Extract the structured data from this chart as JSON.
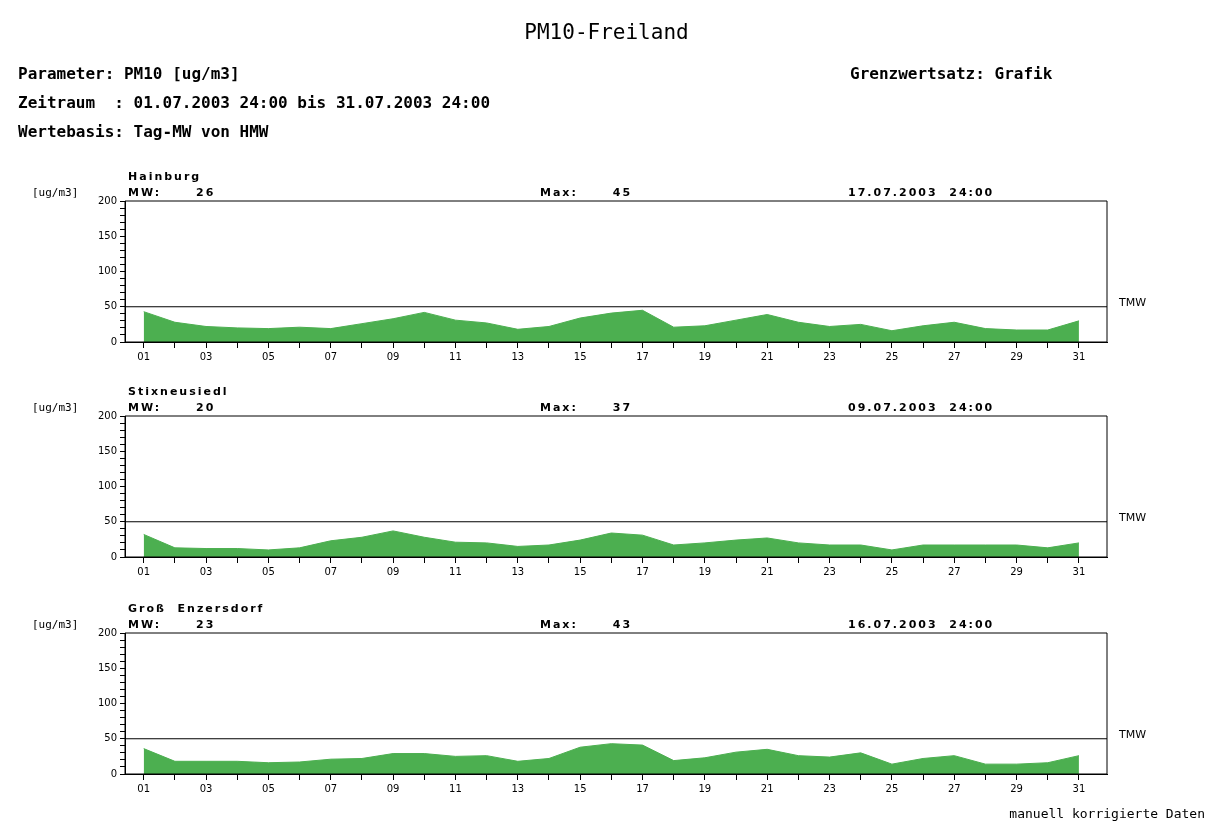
{
  "chart_data": [
    {
      "type": "other",
      "title": "PM10-Freiland",
      "annotations": [
        "Parameter: PM10 [ug/m3]",
        "Zeitraum  : 01.07.2003 24:00 bis 31.07.2003 24:00",
        "Wertebasis: Tag-MW von HMW",
        "Grenzwertsatz: Grafik"
      ]
    },
    {
      "type": "area",
      "title": "Hainburg",
      "ylabel": "[ug/m3]",
      "annotations": [
        "MW:      26",
        "Max:      45",
        "17.07.2003  24:00"
      ],
      "x": [
        1,
        2,
        3,
        4,
        5,
        6,
        7,
        8,
        9,
        10,
        11,
        12,
        13,
        14,
        15,
        16,
        17,
        18,
        19,
        20,
        21,
        22,
        23,
        24,
        25,
        26,
        27,
        28,
        29,
        30,
        31
      ],
      "series": [
        {
          "color": "#4caf50",
          "values": [
            43,
            28,
            22,
            20,
            19,
            21,
            19,
            26,
            33,
            42,
            31,
            27,
            18,
            22,
            34,
            41,
            45,
            21,
            23,
            31,
            39,
            28,
            22,
            25,
            16,
            23,
            28,
            19,
            17,
            17,
            30
          ]
        }
      ],
      "xlim": [
        0.4,
        31.9
      ],
      "xticks": [
        {
          "value": 1,
          "label": "01"
        },
        {
          "value": 2,
          "label": null
        },
        {
          "value": 3,
          "label": "03"
        },
        {
          "value": 4,
          "label": null
        },
        {
          "value": 5,
          "label": "05"
        },
        {
          "value": 6,
          "label": null
        },
        {
          "value": 7,
          "label": "07"
        },
        {
          "value": 8,
          "label": null
        },
        {
          "value": 9,
          "label": "09"
        },
        {
          "value": 10,
          "label": null
        },
        {
          "value": 11,
          "label": "11"
        },
        {
          "value": 12,
          "label": null
        },
        {
          "value": 13,
          "label": "13"
        },
        {
          "value": 14,
          "label": null
        },
        {
          "value": 15,
          "label": "15"
        },
        {
          "value": 16,
          "label": null
        },
        {
          "value": 17,
          "label": "17"
        },
        {
          "value": 18,
          "label": null
        },
        {
          "value": 19,
          "label": "19"
        },
        {
          "value": 20,
          "label": null
        },
        {
          "value": 21,
          "label": "21"
        },
        {
          "value": 22,
          "label": null
        },
        {
          "value": 23,
          "label": "23"
        },
        {
          "value": 24,
          "label": null
        },
        {
          "value": 25,
          "label": "25"
        },
        {
          "value": 26,
          "label": null
        },
        {
          "value": 27,
          "label": "27"
        },
        {
          "value": 28,
          "label": null
        },
        {
          "value": 29,
          "label": "29"
        },
        {
          "value": 30,
          "label": null
        },
        {
          "value": 31,
          "label": "31"
        }
      ],
      "ylim": [
        0,
        200
      ],
      "yticks": [
        0,
        {
          "value": 10,
          "label": null
        },
        {
          "value": 20,
          "label": null
        },
        {
          "value": 30,
          "label": null
        },
        {
          "value": 40,
          "label": null
        },
        50,
        {
          "value": 60,
          "label": null
        },
        {
          "value": 70,
          "label": null
        },
        {
          "value": 80,
          "label": null
        },
        {
          "value": 90,
          "label": null
        },
        100,
        {
          "value": 110,
          "label": null
        },
        {
          "value": 120,
          "label": null
        },
        {
          "value": 130,
          "label": null
        },
        {
          "value": 140,
          "label": null
        },
        150,
        {
          "value": 160,
          "label": null
        },
        {
          "value": 170,
          "label": null
        },
        {
          "value": 180,
          "label": null
        },
        {
          "value": 190,
          "label": null
        },
        200
      ],
      "ref_lines": [
        {
          "axis": "y",
          "value": 50,
          "label": "TMW",
          "color": "#000000"
        }
      ],
      "grid": false,
      "legend": false,
      "marker": "none"
    },
    {
      "type": "area",
      "title": "Stixneusiedl",
      "ylabel": "[ug/m3]",
      "annotations": [
        "MW:      20",
        "Max:      37",
        "09.07.2003  24:00"
      ],
      "x": [
        1,
        2,
        3,
        4,
        5,
        6,
        7,
        8,
        9,
        10,
        11,
        12,
        13,
        14,
        15,
        16,
        17,
        18,
        19,
        20,
        21,
        22,
        23,
        24,
        25,
        26,
        27,
        28,
        29,
        30,
        31
      ],
      "series": [
        {
          "color": "#4caf50",
          "values": [
            32,
            13,
            12,
            12,
            10,
            13,
            23,
            28,
            37,
            28,
            21,
            20,
            15,
            17,
            24,
            34,
            31,
            17,
            20,
            24,
            27,
            20,
            17,
            17,
            10,
            17,
            17,
            17,
            17,
            13,
            20
          ]
        }
      ],
      "xlim": [
        0.4,
        31.9
      ],
      "xticks": [
        {
          "value": 1,
          "label": "01"
        },
        {
          "value": 2,
          "label": null
        },
        {
          "value": 3,
          "label": "03"
        },
        {
          "value": 4,
          "label": null
        },
        {
          "value": 5,
          "label": "05"
        },
        {
          "value": 6,
          "label": null
        },
        {
          "value": 7,
          "label": "07"
        },
        {
          "value": 8,
          "label": null
        },
        {
          "value": 9,
          "label": "09"
        },
        {
          "value": 10,
          "label": null
        },
        {
          "value": 11,
          "label": "11"
        },
        {
          "value": 12,
          "label": null
        },
        {
          "value": 13,
          "label": "13"
        },
        {
          "value": 14,
          "label": null
        },
        {
          "value": 15,
          "label": "15"
        },
        {
          "value": 16,
          "label": null
        },
        {
          "value": 17,
          "label": "17"
        },
        {
          "value": 18,
          "label": null
        },
        {
          "value": 19,
          "label": "19"
        },
        {
          "value": 20,
          "label": null
        },
        {
          "value": 21,
          "label": "21"
        },
        {
          "value": 22,
          "label": null
        },
        {
          "value": 23,
          "label": "23"
        },
        {
          "value": 24,
          "label": null
        },
        {
          "value": 25,
          "label": "25"
        },
        {
          "value": 26,
          "label": null
        },
        {
          "value": 27,
          "label": "27"
        },
        {
          "value": 28,
          "label": null
        },
        {
          "value": 29,
          "label": "29"
        },
        {
          "value": 30,
          "label": null
        },
        {
          "value": 31,
          "label": "31"
        }
      ],
      "ylim": [
        0,
        200
      ],
      "yticks": [
        0,
        {
          "value": 10,
          "label": null
        },
        {
          "value": 20,
          "label": null
        },
        {
          "value": 30,
          "label": null
        },
        {
          "value": 40,
          "label": null
        },
        50,
        {
          "value": 60,
          "label": null
        },
        {
          "value": 70,
          "label": null
        },
        {
          "value": 80,
          "label": null
        },
        {
          "value": 90,
          "label": null
        },
        100,
        {
          "value": 110,
          "label": null
        },
        {
          "value": 120,
          "label": null
        },
        {
          "value": 130,
          "label": null
        },
        {
          "value": 140,
          "label": null
        },
        150,
        {
          "value": 160,
          "label": null
        },
        {
          "value": 170,
          "label": null
        },
        {
          "value": 180,
          "label": null
        },
        {
          "value": 190,
          "label": null
        },
        200
      ],
      "ref_lines": [
        {
          "axis": "y",
          "value": 50,
          "label": "TMW",
          "color": "#000000"
        }
      ],
      "grid": false,
      "legend": false,
      "marker": "none"
    },
    {
      "type": "area",
      "title": "Groß  Enzersdorf",
      "ylabel": "[ug/m3]",
      "annotations": [
        "MW:      23",
        "Max:      43",
        "16.07.2003  24:00",
        "manuell korrigierte Daten"
      ],
      "x": [
        1,
        2,
        3,
        4,
        5,
        6,
        7,
        8,
        9,
        10,
        11,
        12,
        13,
        14,
        15,
        16,
        17,
        18,
        19,
        20,
        21,
        22,
        23,
        24,
        25,
        26,
        27,
        28,
        29,
        30,
        31
      ],
      "series": [
        {
          "color": "#4caf50",
          "values": [
            36,
            18,
            18,
            18,
            16,
            17,
            21,
            22,
            29,
            29,
            25,
            26,
            18,
            22,
            38,
            43,
            41,
            19,
            23,
            31,
            35,
            26,
            24,
            30,
            14,
            22,
            26,
            14,
            14,
            16,
            26
          ]
        }
      ],
      "xlim": [
        0.4,
        31.9
      ],
      "xticks": [
        {
          "value": 1,
          "label": "01"
        },
        {
          "value": 2,
          "label": null
        },
        {
          "value": 3,
          "label": "03"
        },
        {
          "value": 4,
          "label": null
        },
        {
          "value": 5,
          "label": "05"
        },
        {
          "value": 6,
          "label": null
        },
        {
          "value": 7,
          "label": "07"
        },
        {
          "value": 8,
          "label": null
        },
        {
          "value": 9,
          "label": "09"
        },
        {
          "value": 10,
          "label": null
        },
        {
          "value": 11,
          "label": "11"
        },
        {
          "value": 12,
          "label": null
        },
        {
          "value": 13,
          "label": "13"
        },
        {
          "value": 14,
          "label": null
        },
        {
          "value": 15,
          "label": "15"
        },
        {
          "value": 16,
          "label": null
        },
        {
          "value": 17,
          "label": "17"
        },
        {
          "value": 18,
          "label": null
        },
        {
          "value": 19,
          "label": "19"
        },
        {
          "value": 20,
          "label": null
        },
        {
          "value": 21,
          "label": "21"
        },
        {
          "value": 22,
          "label": null
        },
        {
          "value": 23,
          "label": "23"
        },
        {
          "value": 24,
          "label": null
        },
        {
          "value": 25,
          "label": "25"
        },
        {
          "value": 26,
          "label": null
        },
        {
          "value": 27,
          "label": "27"
        },
        {
          "value": 28,
          "label": null
        },
        {
          "value": 29,
          "label": "29"
        },
        {
          "value": 30,
          "label": null
        },
        {
          "value": 31,
          "label": "31"
        }
      ],
      "ylim": [
        0,
        200
      ],
      "yticks": [
        0,
        {
          "value": 10,
          "label": null
        },
        {
          "value": 20,
          "label": null
        },
        {
          "value": 30,
          "label": null
        },
        {
          "value": 40,
          "label": null
        },
        50,
        {
          "value": 60,
          "label": null
        },
        {
          "value": 70,
          "label": null
        },
        {
          "value": 80,
          "label": null
        },
        {
          "value": 90,
          "label": null
        },
        100,
        {
          "value": 110,
          "label": null
        },
        {
          "value": 120,
          "label": null
        },
        {
          "value": 130,
          "label": null
        },
        {
          "value": 140,
          "label": null
        },
        150,
        {
          "value": 160,
          "label": null
        },
        {
          "value": 170,
          "label": null
        },
        {
          "value": 180,
          "label": null
        },
        {
          "value": 190,
          "label": null
        },
        200
      ],
      "ref_lines": [
        {
          "axis": "y",
          "value": 50,
          "label": "TMW",
          "color": "#000000"
        }
      ],
      "grid": false,
      "legend": false,
      "marker": "none"
    }
  ]
}
